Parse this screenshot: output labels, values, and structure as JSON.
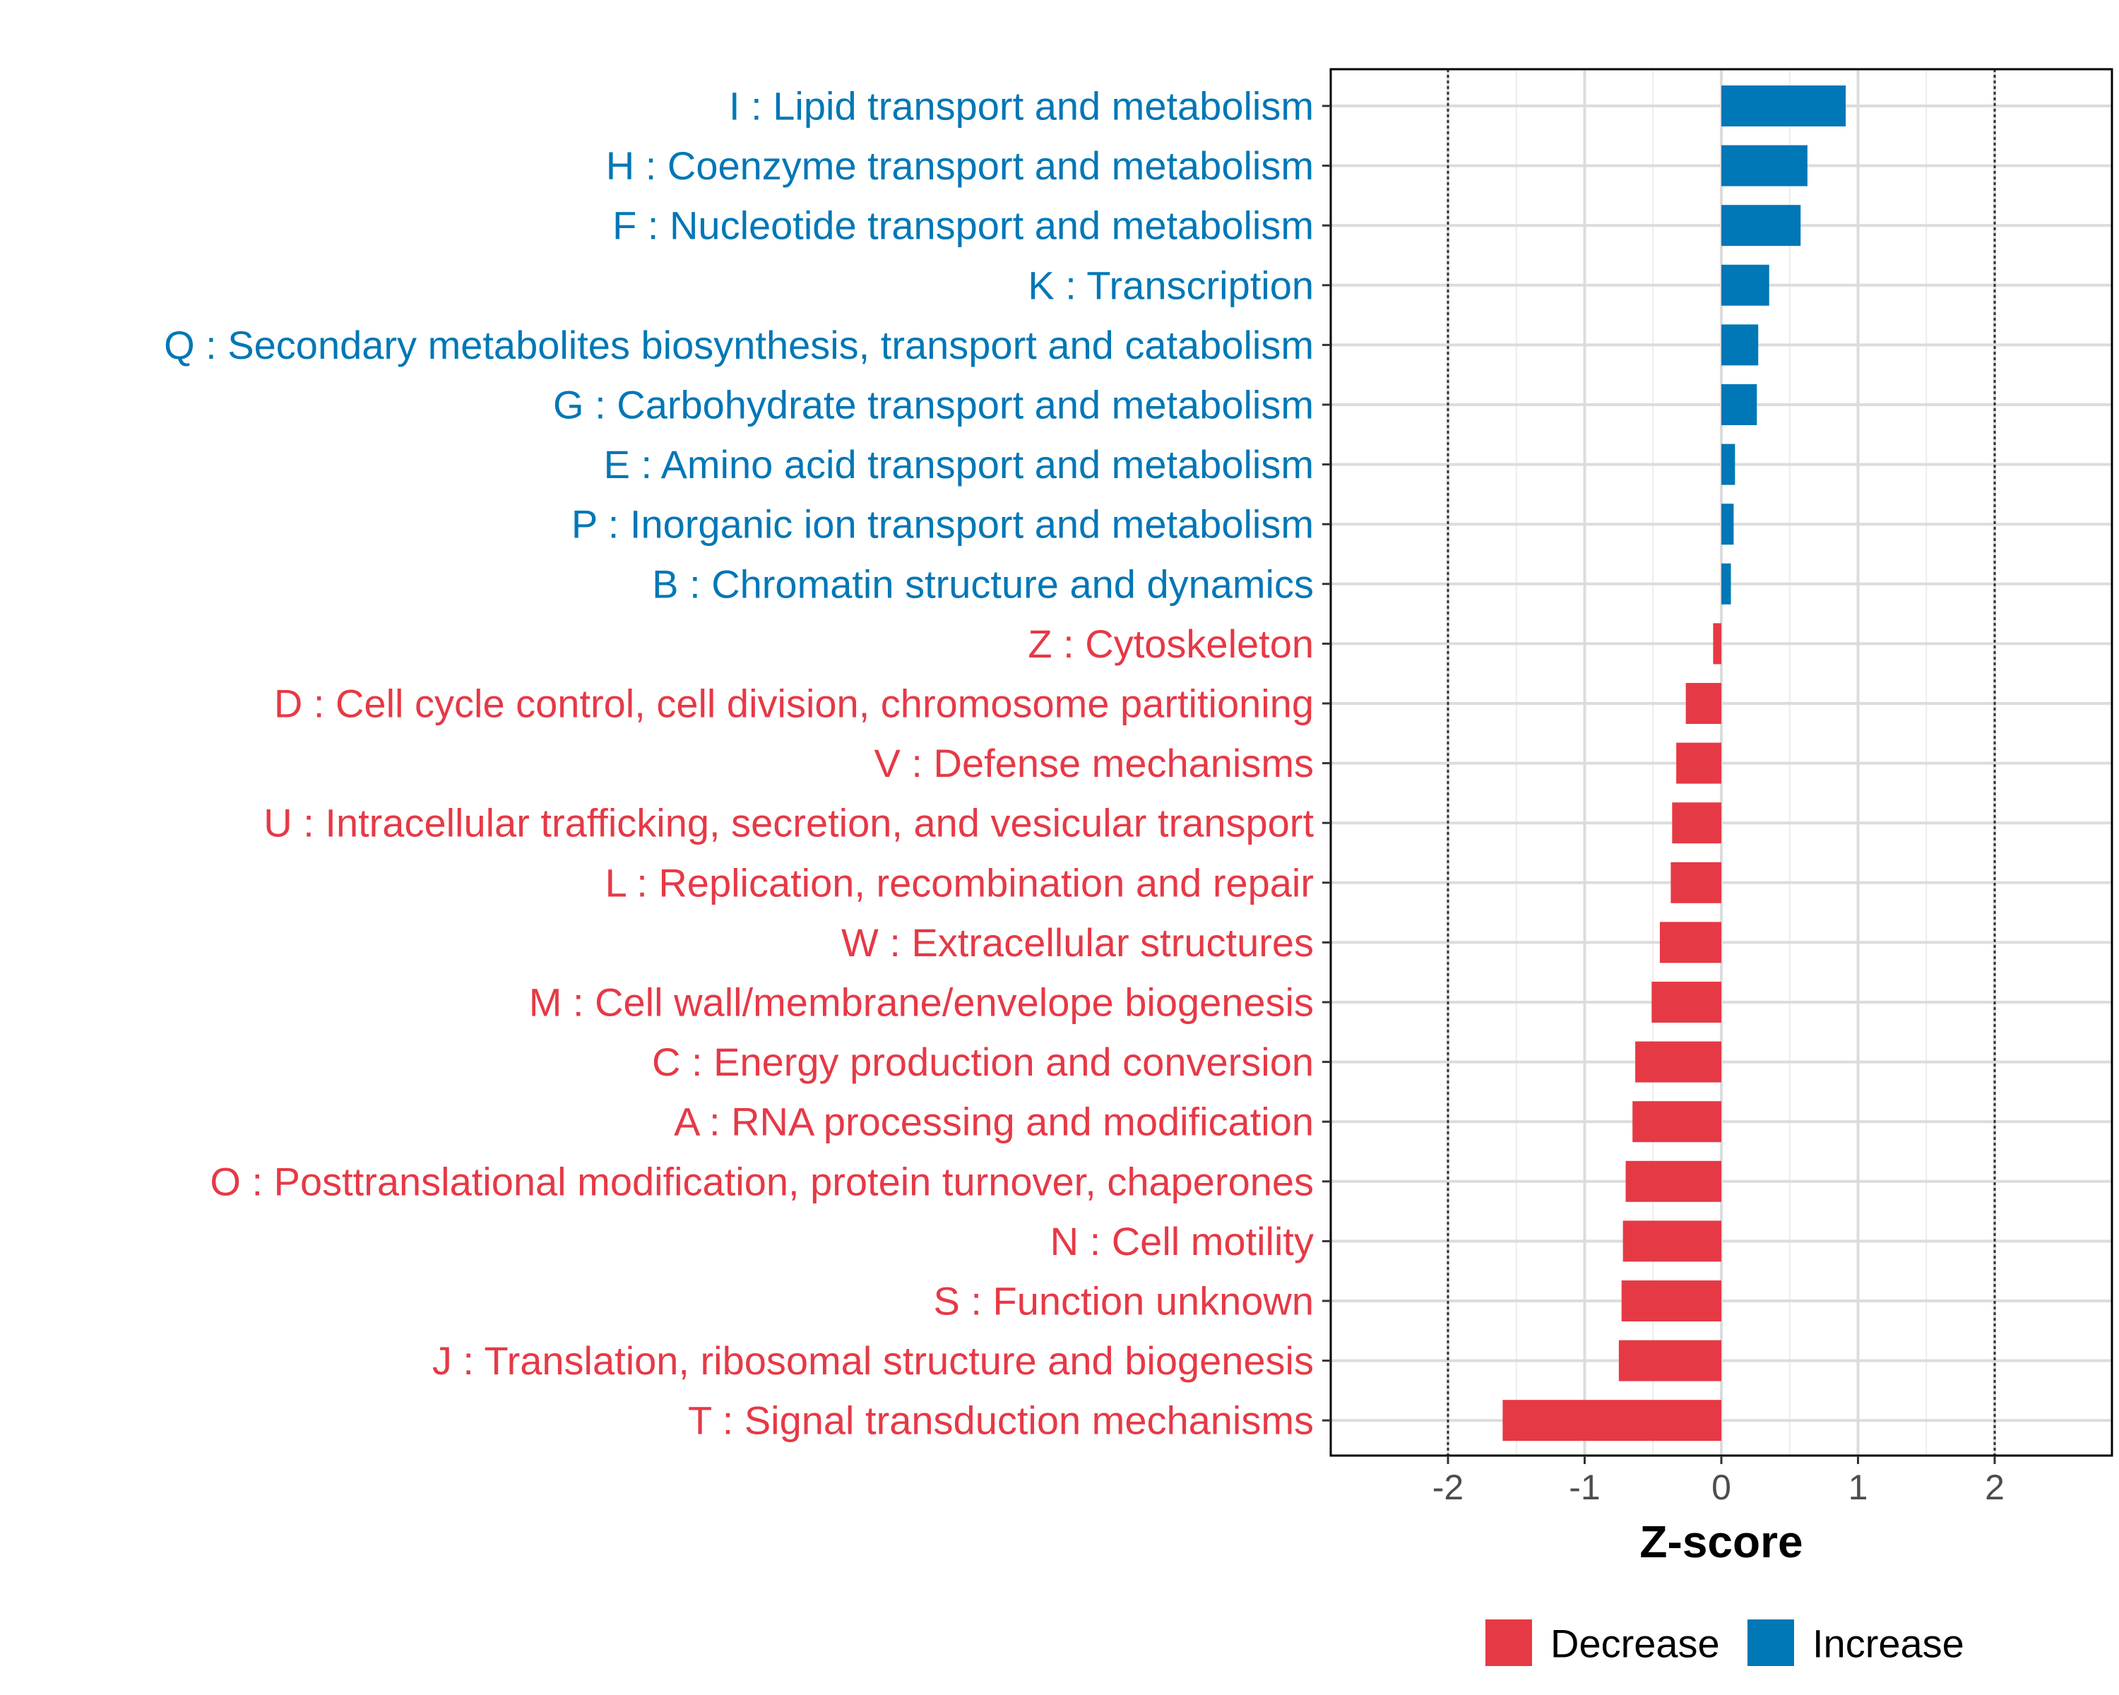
{
  "chart_data": {
    "type": "bar",
    "orientation": "horizontal",
    "xlabel": "Z-score",
    "xlim": [
      -2.85,
      2.85
    ],
    "xticks": [
      -2,
      -1,
      0,
      1,
      2
    ],
    "xtick_labels": [
      "-2",
      "-1",
      "0",
      "1",
      "2"
    ],
    "reference_lines": [
      -2,
      2
    ],
    "grid": true,
    "categories": [
      "I : Lipid transport and metabolism",
      "H : Coenzyme transport and metabolism",
      "F : Nucleotide transport and metabolism",
      "K : Transcription",
      "Q : Secondary metabolites biosynthesis, transport and catabolism",
      "G : Carbohydrate transport and metabolism",
      "E : Amino acid transport and metabolism",
      "P : Inorganic ion transport and metabolism",
      "B : Chromatin structure and dynamics",
      "Z : Cytoskeleton",
      "D : Cell cycle control, cell division, chromosome partitioning",
      "V : Defense mechanisms",
      "U : Intracellular trafficking, secretion, and vesicular transport",
      "L : Replication, recombination and repair",
      "W : Extracellular structures",
      "M : Cell wall/membrane/envelope biogenesis",
      "C : Energy production and conversion",
      "A : RNA processing and modification",
      "O : Posttranslational modification, protein turnover, chaperones",
      "N : Cell motility",
      "S : Function unknown",
      "J : Translation, ribosomal structure and biogenesis",
      "T : Signal transduction mechanisms"
    ],
    "values": [
      0.91,
      0.63,
      0.58,
      0.35,
      0.27,
      0.26,
      0.1,
      0.09,
      0.07,
      -0.06,
      -0.26,
      -0.33,
      -0.36,
      -0.37,
      -0.45,
      -0.51,
      -0.63,
      -0.65,
      -0.7,
      -0.72,
      -0.73,
      -0.75,
      -1.6
    ],
    "groups": [
      "Increase",
      "Increase",
      "Increase",
      "Increase",
      "Increase",
      "Increase",
      "Increase",
      "Increase",
      "Increase",
      "Decrease",
      "Decrease",
      "Decrease",
      "Decrease",
      "Decrease",
      "Decrease",
      "Decrease",
      "Decrease",
      "Decrease",
      "Decrease",
      "Decrease",
      "Decrease",
      "Decrease",
      "Decrease"
    ],
    "legend": [
      {
        "label": "Decrease",
        "color": "#E63946"
      },
      {
        "label": "Increase",
        "color": "#0077B6"
      }
    ],
    "legend_position": "bottom"
  }
}
